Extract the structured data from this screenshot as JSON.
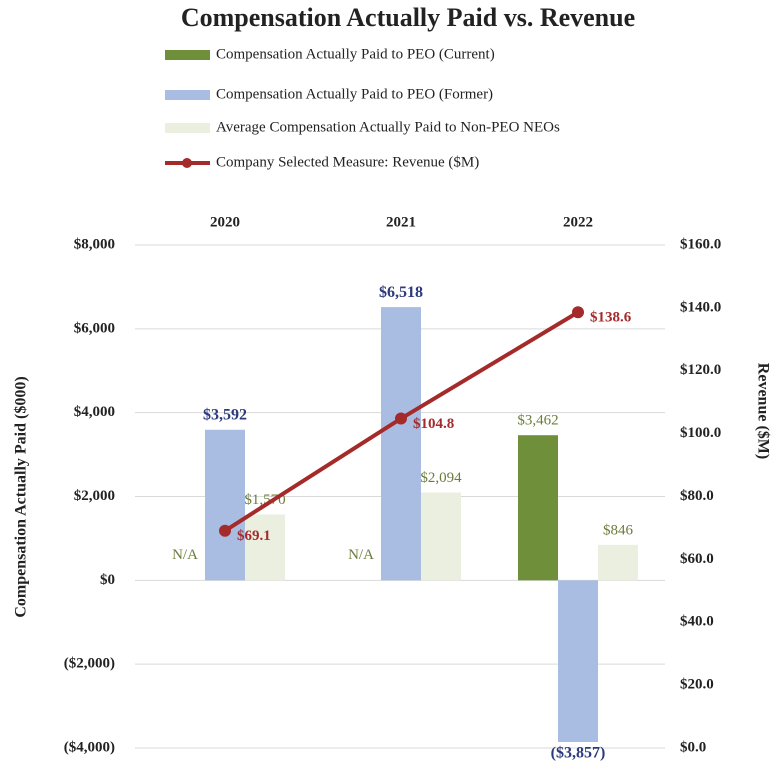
{
  "chart_data": {
    "type": "bar",
    "title": "Compensation Actually Paid vs. Revenue",
    "categories": [
      "2020",
      "2021",
      "2022"
    ],
    "ylabel": "Compensation Actually Paid ($000)",
    "y2label": "Revenue ($M)",
    "series": [
      {
        "name": "Compensation Actually Paid to PEO (Current)",
        "type": "bar",
        "color": "#6f8f3a",
        "label_color": "#6b7d3a",
        "values": [
          null,
          null,
          3462
        ],
        "value_labels": [
          "N/A",
          "N/A",
          "$3,462"
        ]
      },
      {
        "name": "Compensation Actually Paid to PEO (Former)",
        "type": "bar",
        "color": "#a9bde2",
        "label_color": "#2b3a7c",
        "values": [
          3592,
          6518,
          -3857
        ],
        "value_labels": [
          "$3,592",
          "$6,518",
          "($3,857)"
        ]
      },
      {
        "name": "Average Compensation Actually Paid to Non-PEO NEOs",
        "type": "bar",
        "color": "#eaefdf",
        "label_color": "#6b7d3a",
        "values": [
          1570,
          2094,
          846
        ],
        "value_labels": [
          "$1,570",
          "$2,094",
          "$846"
        ]
      },
      {
        "name": "Company Selected Measure: Revenue ($M)",
        "type": "line",
        "axis": "y2",
        "color": "#a52a2a",
        "label_color": "#a52a2a",
        "values": [
          69.1,
          104.8,
          138.6
        ],
        "value_labels": [
          "$69.1",
          "$104.8",
          "$138.6"
        ]
      }
    ],
    "ylim": [
      -4000,
      8000
    ],
    "yticks": [
      {
        "value": -4000,
        "label": "($4,000)"
      },
      {
        "value": -2000,
        "label": "($2,000)"
      },
      {
        "value": 0,
        "label": "$0"
      },
      {
        "value": 2000,
        "label": "$2,000"
      },
      {
        "value": 4000,
        "label": "$4,000"
      },
      {
        "value": 6000,
        "label": "$6,000"
      },
      {
        "value": 8000,
        "label": "$8,000"
      }
    ],
    "y2lim": [
      0,
      160
    ],
    "y2ticks": [
      {
        "value": 0,
        "label": "$0.0"
      },
      {
        "value": 20,
        "label": "$20.0"
      },
      {
        "value": 40,
        "label": "$40.0"
      },
      {
        "value": 60,
        "label": "$60.0"
      },
      {
        "value": 80,
        "label": "$80.0"
      },
      {
        "value": 100,
        "label": "$100.0"
      },
      {
        "value": 120,
        "label": "$120.0"
      },
      {
        "value": 140,
        "label": "$140.0"
      },
      {
        "value": 160,
        "label": "$160.0"
      }
    ],
    "grid": true
  }
}
